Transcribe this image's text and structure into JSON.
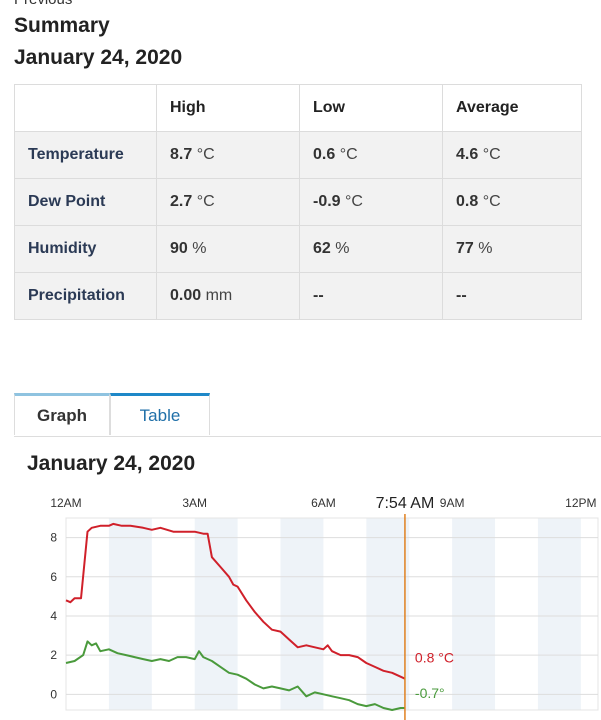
{
  "header": {
    "cut_label": "Previous",
    "title": "Summary",
    "date": "January 24, 2020"
  },
  "summary_table": {
    "headers": [
      "",
      "High",
      "Low",
      "Average"
    ],
    "rows": [
      {
        "label": "Temperature",
        "high": "8.7",
        "high_unit": "°C",
        "low": "0.6",
        "low_unit": "°C",
        "avg": "4.6",
        "avg_unit": "°C"
      },
      {
        "label": "Dew Point",
        "high": "2.7",
        "high_unit": "°C",
        "low": "-0.9",
        "low_unit": "°C",
        "avg": "0.8",
        "avg_unit": "°C"
      },
      {
        "label": "Humidity",
        "high": "90",
        "high_unit": "%",
        "low": "62",
        "low_unit": "%",
        "avg": "77",
        "avg_unit": "%"
      },
      {
        "label": "Precipitation",
        "high": "0.00",
        "high_unit": "mm",
        "low": "--",
        "low_unit": "",
        "avg": "--",
        "avg_unit": ""
      }
    ]
  },
  "tabs": [
    {
      "label": "Graph",
      "active": true
    },
    {
      "label": "Table",
      "active": false
    }
  ],
  "graph": {
    "date": "January 24, 2020"
  },
  "chart_data": {
    "type": "line",
    "x_unit": "hours",
    "x_ticks": [
      {
        "x": 0,
        "label": "12AM"
      },
      {
        "x": 3,
        "label": "3AM"
      },
      {
        "x": 6,
        "label": "6AM"
      },
      {
        "x": 9,
        "label": "9AM"
      },
      {
        "x": 12,
        "label": "12PM"
      }
    ],
    "y_ticks": [
      0,
      2,
      4,
      6,
      8
    ],
    "ylim": [
      -0.8,
      9
    ],
    "xlim": [
      0,
      12.4
    ],
    "grid": true,
    "cursor": {
      "x": 7.9,
      "label": "7:54 AM",
      "color": "#e08020"
    },
    "series": [
      {
        "color": "#d0202a",
        "end_label": "0.8 °C",
        "points": [
          [
            0,
            4.8
          ],
          [
            0.1,
            4.7
          ],
          [
            0.2,
            4.9
          ],
          [
            0.35,
            4.9
          ],
          [
            0.5,
            8.3
          ],
          [
            0.6,
            8.5
          ],
          [
            0.8,
            8.6
          ],
          [
            1.0,
            8.6
          ],
          [
            1.1,
            8.7
          ],
          [
            1.3,
            8.6
          ],
          [
            1.5,
            8.6
          ],
          [
            1.8,
            8.5
          ],
          [
            2.0,
            8.4
          ],
          [
            2.2,
            8.5
          ],
          [
            2.5,
            8.3
          ],
          [
            2.8,
            8.3
          ],
          [
            3.0,
            8.3
          ],
          [
            3.2,
            8.2
          ],
          [
            3.3,
            8.2
          ],
          [
            3.4,
            7.0
          ],
          [
            3.6,
            6.5
          ],
          [
            3.8,
            6.0
          ],
          [
            3.9,
            5.6
          ],
          [
            4.0,
            5.5
          ],
          [
            4.2,
            4.8
          ],
          [
            4.4,
            4.2
          ],
          [
            4.6,
            3.7
          ],
          [
            4.8,
            3.3
          ],
          [
            5.0,
            3.2
          ],
          [
            5.2,
            2.8
          ],
          [
            5.4,
            2.4
          ],
          [
            5.6,
            2.5
          ],
          [
            5.8,
            2.4
          ],
          [
            6.0,
            2.3
          ],
          [
            6.1,
            2.5
          ],
          [
            6.2,
            2.2
          ],
          [
            6.4,
            2.0
          ],
          [
            6.6,
            2.0
          ],
          [
            6.8,
            1.9
          ],
          [
            7.0,
            1.6
          ],
          [
            7.2,
            1.4
          ],
          [
            7.4,
            1.2
          ],
          [
            7.6,
            1.1
          ],
          [
            7.8,
            0.9
          ],
          [
            7.9,
            0.8
          ]
        ]
      },
      {
        "color": "#4a9a3c",
        "end_label": "-0.7°",
        "points": [
          [
            0,
            1.6
          ],
          [
            0.2,
            1.7
          ],
          [
            0.4,
            2.0
          ],
          [
            0.5,
            2.7
          ],
          [
            0.6,
            2.5
          ],
          [
            0.7,
            2.6
          ],
          [
            0.8,
            2.2
          ],
          [
            1.0,
            2.3
          ],
          [
            1.2,
            2.1
          ],
          [
            1.4,
            2.0
          ],
          [
            1.6,
            1.9
          ],
          [
            1.8,
            1.8
          ],
          [
            2.0,
            1.7
          ],
          [
            2.2,
            1.8
          ],
          [
            2.4,
            1.7
          ],
          [
            2.6,
            1.9
          ],
          [
            2.8,
            1.9
          ],
          [
            3.0,
            1.8
          ],
          [
            3.1,
            2.2
          ],
          [
            3.2,
            1.9
          ],
          [
            3.4,
            1.7
          ],
          [
            3.6,
            1.4
          ],
          [
            3.8,
            1.1
          ],
          [
            4.0,
            1.0
          ],
          [
            4.2,
            0.8
          ],
          [
            4.4,
            0.5
          ],
          [
            4.6,
            0.3
          ],
          [
            4.8,
            0.4
          ],
          [
            5.0,
            0.3
          ],
          [
            5.2,
            0.2
          ],
          [
            5.4,
            0.4
          ],
          [
            5.6,
            -0.1
          ],
          [
            5.8,
            0.1
          ],
          [
            6.0,
            0.0
          ],
          [
            6.2,
            -0.1
          ],
          [
            6.4,
            -0.2
          ],
          [
            6.6,
            -0.3
          ],
          [
            6.8,
            -0.5
          ],
          [
            7.0,
            -0.6
          ],
          [
            7.2,
            -0.5
          ],
          [
            7.4,
            -0.7
          ],
          [
            7.6,
            -0.8
          ],
          [
            7.8,
            -0.7
          ],
          [
            7.9,
            -0.7
          ]
        ]
      }
    ]
  }
}
